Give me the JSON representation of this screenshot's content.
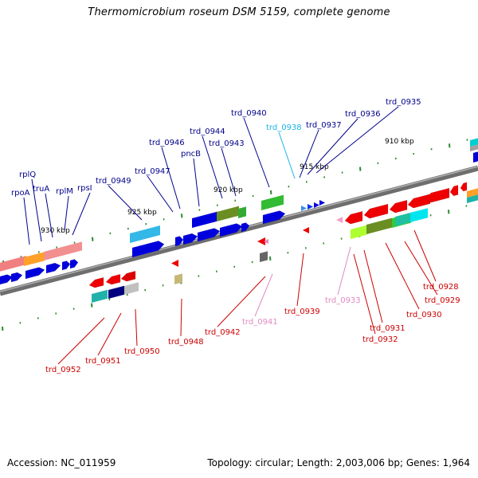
{
  "title": "Thermomicrobium roseum DSM 5159, complete genome",
  "footer": {
    "accession": "Accession: NC_011959",
    "summary": "Topology: circular; Length: 2,003,006 bp; Genes: 1,964"
  },
  "colors": {
    "label_top": "#00008b",
    "label_bottom": "#cc0000",
    "label_trd_0938": "#1ab3e6",
    "label_pink": "#e08ac0",
    "backbone": "#808080",
    "tick": "#2e8b2e"
  },
  "scale_labels": [
    {
      "id": "kbp-910",
      "text": "910 kbp"
    },
    {
      "id": "kbp-915",
      "text": "915 kbp"
    },
    {
      "id": "kbp-920",
      "text": "920 kbp"
    },
    {
      "id": "kbp-925",
      "text": "925 kbp"
    },
    {
      "id": "kbp-930",
      "text": "930 kbp"
    }
  ],
  "gene_labels_top": [
    "rpoA",
    "rplQ",
    "truA",
    "rplM",
    "rpsI",
    "trd_0949",
    "trd_0947",
    "trd_0946",
    "pncB",
    "trd_0944",
    "trd_0943",
    "trd_0940",
    "trd_0938",
    "trd_0937",
    "trd_0936",
    "trd_0935"
  ],
  "gene_labels_bottom": [
    "trd_0952",
    "trd_0951",
    "trd_0950",
    "trd_0948",
    "trd_0942",
    "trd_0941",
    "trd_0939",
    "trd_0933",
    "trd_0932",
    "trd_0931",
    "trd_0930",
    "trd_0929",
    "trd_0928"
  ]
}
